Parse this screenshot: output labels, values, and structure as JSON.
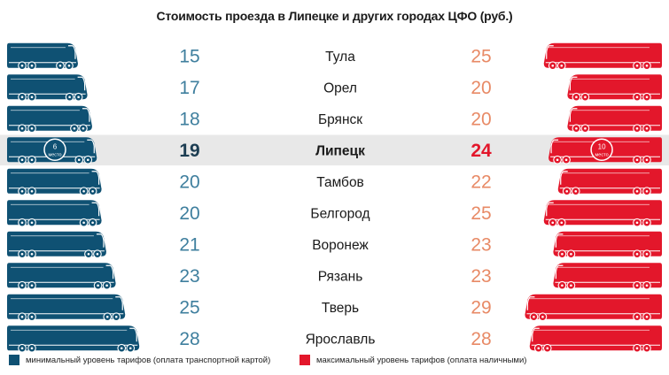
{
  "title": "Стоимость проезда в Липецке и других городах ЦФО (руб.)",
  "colors": {
    "min": "#0f5173",
    "max": "#e3172b",
    "min_text": "#3f7f9e",
    "max_text": "#e88a66",
    "highlight_band": "#e8e8e8"
  },
  "icon": "bus-icon",
  "chart_data": {
    "type": "bar",
    "title": "Стоимость проезда в Липецке и других городах ЦФО (руб.)",
    "categories": [
      "Тула",
      "Орел",
      "Брянск",
      "Липецк",
      "Тамбов",
      "Белгород",
      "Воронеж",
      "Рязань",
      "Тверь",
      "Ярославль"
    ],
    "highlight": "Липецк",
    "series": [
      {
        "name": "минимальный уровень тарифов (оплата транспортной картой)",
        "values": [
          15,
          17,
          18,
          19,
          20,
          20,
          21,
          23,
          25,
          28
        ],
        "side": "left"
      },
      {
        "name": "максимальный уровень тарифов (оплата наличными)",
        "values": [
          25,
          20,
          20,
          24,
          22,
          25,
          23,
          23,
          29,
          28
        ],
        "side": "right"
      }
    ],
    "rank_labels": {
      "min": {
        "rank": "6",
        "word": "место"
      },
      "max": {
        "rank": "10",
        "word": "место"
      }
    }
  },
  "legend": {
    "min_label": "минимальный уровень тарифов (оплата транспортной картой)",
    "max_label": "максимальный уровень тарифов (оплата наличными)"
  }
}
